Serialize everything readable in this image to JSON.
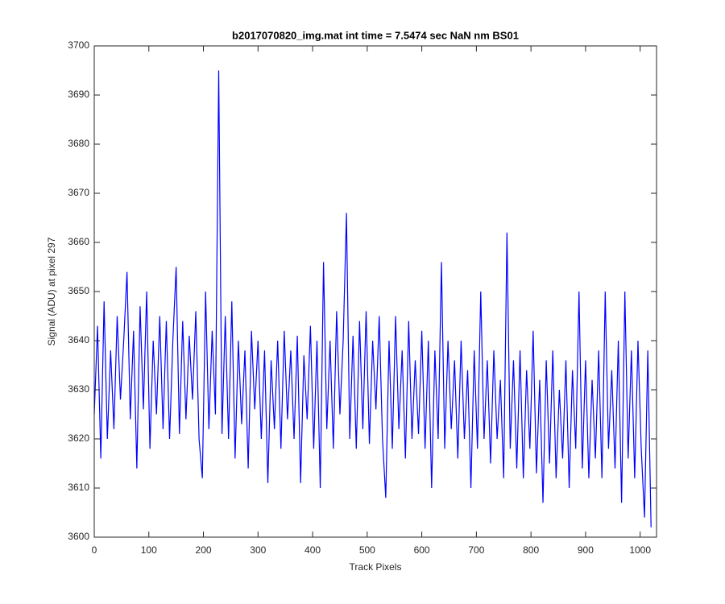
{
  "chart_data": {
    "type": "line",
    "title": "b2017070820_img.mat int time = 7.5474 sec  NaN nm BS01",
    "xlabel": "Track Pixels",
    "ylabel": "Signal (ADU) at pixel 297",
    "color": "#0000ff",
    "xlim": [
      0,
      1030
    ],
    "ylim": [
      3600,
      3700
    ],
    "xticks": [
      0,
      100,
      200,
      300,
      400,
      500,
      600,
      700,
      800,
      900,
      1000
    ],
    "yticks": [
      3600,
      3610,
      3620,
      3630,
      3640,
      3650,
      3660,
      3670,
      3680,
      3690,
      3700
    ],
    "x": [
      0,
      6,
      12,
      18,
      24,
      30,
      36,
      42,
      48,
      54,
      60,
      66,
      72,
      78,
      84,
      90,
      96,
      102,
      108,
      114,
      120,
      126,
      132,
      138,
      144,
      150,
      156,
      162,
      168,
      174,
      180,
      186,
      192,
      198,
      204,
      210,
      216,
      222,
      228,
      234,
      240,
      246,
      252,
      258,
      264,
      270,
      276,
      282,
      288,
      294,
      300,
      306,
      312,
      318,
      324,
      330,
      336,
      342,
      348,
      354,
      360,
      366,
      372,
      378,
      384,
      390,
      396,
      402,
      408,
      414,
      420,
      426,
      432,
      438,
      444,
      450,
      456,
      462,
      468,
      474,
      480,
      486,
      492,
      498,
      504,
      510,
      516,
      522,
      528,
      534,
      540,
      546,
      552,
      558,
      564,
      570,
      576,
      582,
      588,
      594,
      600,
      606,
      612,
      618,
      624,
      630,
      636,
      642,
      648,
      654,
      660,
      666,
      672,
      678,
      684,
      690,
      696,
      702,
      708,
      714,
      720,
      726,
      732,
      738,
      744,
      750,
      756,
      762,
      768,
      774,
      780,
      786,
      792,
      798,
      804,
      810,
      816,
      822,
      828,
      834,
      840,
      846,
      852,
      858,
      864,
      870,
      876,
      882,
      888,
      894,
      900,
      906,
      912,
      918,
      924,
      930,
      936,
      942,
      948,
      954,
      960,
      966,
      972,
      978,
      984,
      990,
      996,
      1002,
      1008,
      1014,
      1020
    ],
    "values": [
      3625,
      3643,
      3616,
      3648,
      3620,
      3638,
      3622,
      3645,
      3628,
      3640,
      3654,
      3624,
      3642,
      3614,
      3647,
      3626,
      3650,
      3618,
      3640,
      3625,
      3645,
      3622,
      3644,
      3620,
      3640,
      3655,
      3621,
      3644,
      3624,
      3641,
      3628,
      3646,
      3620,
      3612,
      3650,
      3622,
      3642,
      3625,
      3695,
      3621,
      3645,
      3620,
      3648,
      3616,
      3640,
      3623,
      3638,
      3614,
      3642,
      3626,
      3640,
      3620,
      3638,
      3611,
      3636,
      3622,
      3640,
      3618,
      3642,
      3624,
      3638,
      3620,
      3641,
      3611,
      3637,
      3624,
      3643,
      3618,
      3640,
      3610,
      3656,
      3622,
      3640,
      3618,
      3646,
      3625,
      3640,
      3666,
      3620,
      3641,
      3618,
      3644,
      3622,
      3646,
      3619,
      3640,
      3626,
      3645,
      3620,
      3608,
      3640,
      3618,
      3645,
      3622,
      3638,
      3616,
      3644,
      3620,
      3636,
      3621,
      3642,
      3618,
      3640,
      3610,
      3638,
      3620,
      3656,
      3618,
      3640,
      3622,
      3636,
      3616,
      3640,
      3620,
      3634,
      3610,
      3638,
      3618,
      3650,
      3620,
      3636,
      3615,
      3638,
      3620,
      3632,
      3612,
      3662,
      3618,
      3636,
      3614,
      3638,
      3612,
      3634,
      3618,
      3642,
      3613,
      3632,
      3607,
      3636,
      3615,
      3638,
      3612,
      3630,
      3616,
      3636,
      3610,
      3634,
      3618,
      3650,
      3614,
      3636,
      3612,
      3632,
      3616,
      3638,
      3612,
      3650,
      3618,
      3634,
      3614,
      3640,
      3607,
      3650,
      3616,
      3638,
      3612,
      3640,
      3618,
      3604,
      3638,
      3602
    ]
  }
}
